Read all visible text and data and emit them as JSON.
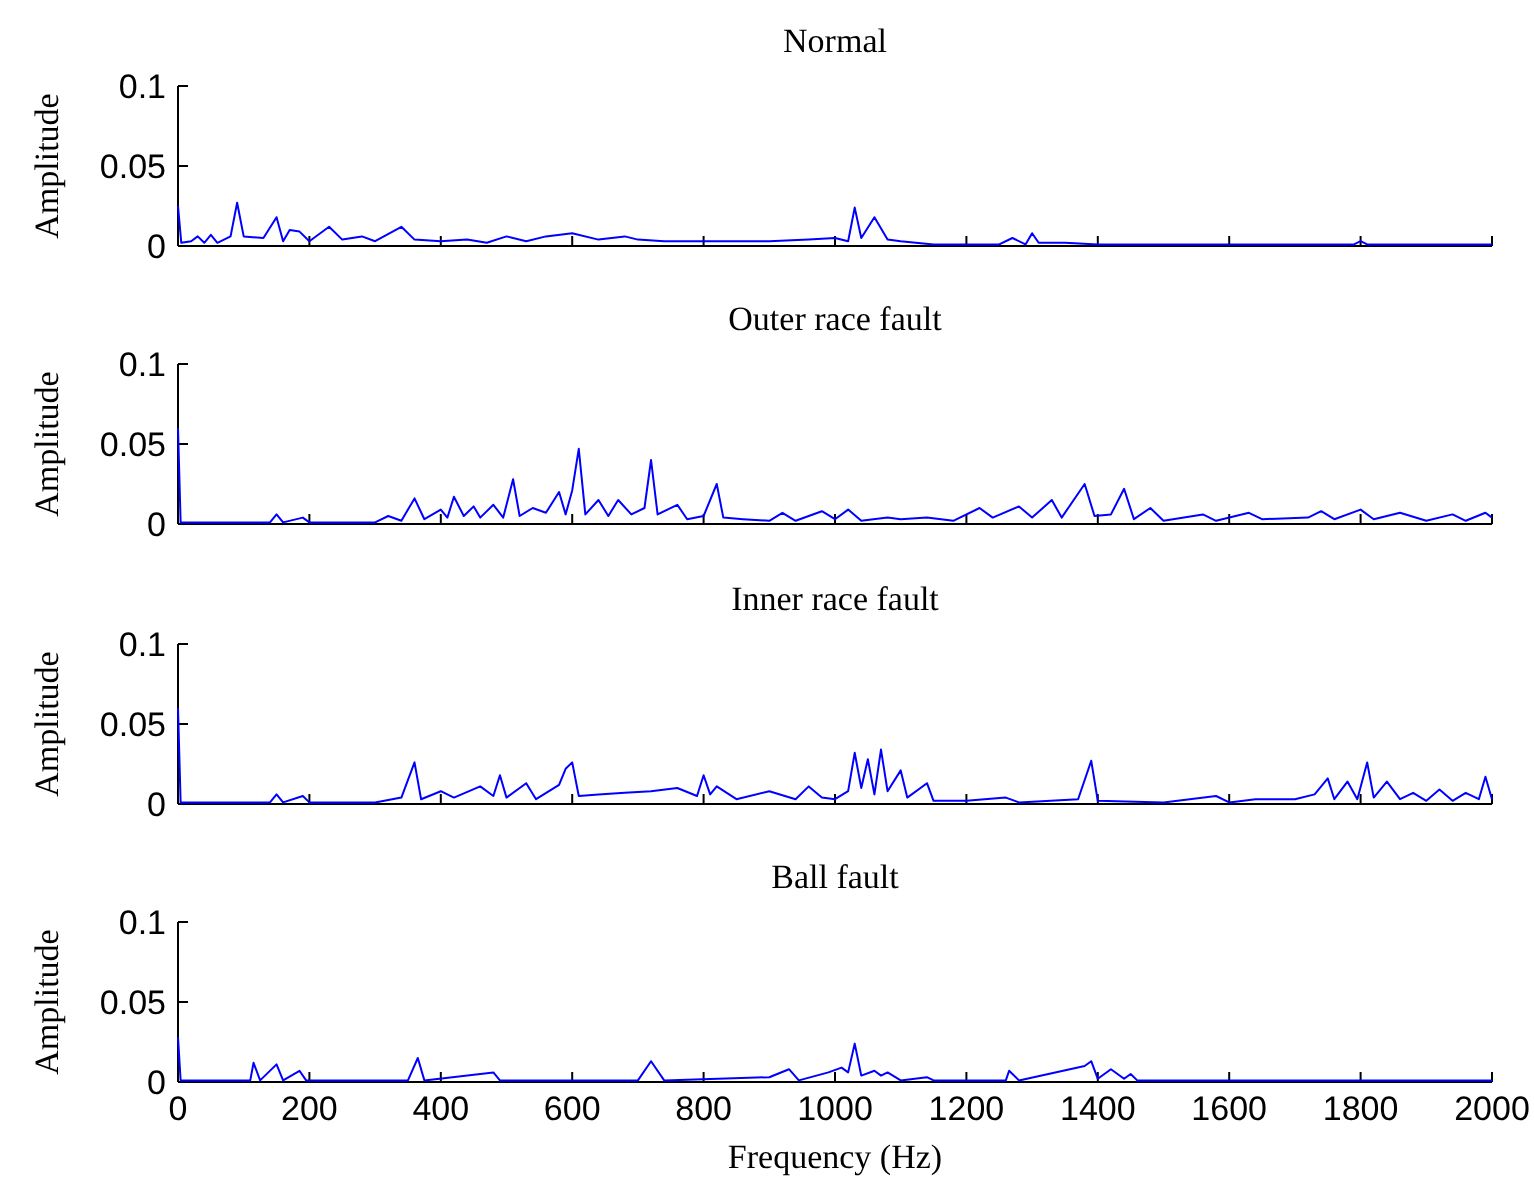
{
  "chart_data": [
    {
      "type": "line",
      "title": "Normal",
      "ylabel": "Amplitude",
      "xlim": [
        0,
        2000
      ],
      "xticks": [
        0,
        200,
        400,
        600,
        800,
        1000,
        1200,
        1400,
        1600,
        1800,
        2000
      ],
      "ylim": [
        0,
        0.1
      ],
      "yticks": [
        0,
        0.05,
        0.1
      ],
      "tick_labels": "y",
      "series": [
        {
          "color": "#0000ff",
          "x": [
            0,
            5,
            20,
            30,
            40,
            50,
            60,
            80,
            90,
            100,
            130,
            150,
            160,
            170,
            185,
            200,
            230,
            250,
            280,
            300,
            340,
            360,
            400,
            440,
            470,
            500,
            530,
            560,
            600,
            640,
            680,
            700,
            740,
            800,
            850,
            900,
            960,
            1000,
            1020,
            1030,
            1040,
            1060,
            1080,
            1100,
            1150,
            1250,
            1270,
            1290,
            1300,
            1310,
            1350,
            1400,
            1600,
            1790,
            1800,
            1810,
            2000
          ],
          "values": [
            0.025,
            0.002,
            0.003,
            0.006,
            0.002,
            0.007,
            0.002,
            0.006,
            0.027,
            0.006,
            0.005,
            0.018,
            0.003,
            0.01,
            0.009,
            0.003,
            0.012,
            0.004,
            0.006,
            0.003,
            0.012,
            0.004,
            0.003,
            0.004,
            0.002,
            0.006,
            0.003,
            0.006,
            0.008,
            0.004,
            0.006,
            0.004,
            0.003,
            0.003,
            0.003,
            0.003,
            0.004,
            0.005,
            0.003,
            0.024,
            0.005,
            0.018,
            0.004,
            0.003,
            0.001,
            0.001,
            0.005,
            0.001,
            0.008,
            0.002,
            0.002,
            0.001,
            0.001,
            0.001,
            0.003,
            0.001,
            0.001
          ]
        }
      ]
    },
    {
      "type": "line",
      "title": "Outer race fault",
      "ylabel": "Amplitude",
      "xlim": [
        0,
        2000
      ],
      "xticks": [
        0,
        200,
        400,
        600,
        800,
        1000,
        1200,
        1400,
        1600,
        1800,
        2000
      ],
      "ylim": [
        0,
        0.1
      ],
      "yticks": [
        0,
        0.05,
        0.1
      ],
      "tick_labels": "y",
      "series": [
        {
          "color": "#0000ff",
          "x": [
            0,
            4,
            140,
            150,
            160,
            190,
            200,
            300,
            320,
            340,
            360,
            375,
            400,
            410,
            420,
            435,
            450,
            460,
            480,
            495,
            510,
            520,
            540,
            560,
            580,
            590,
            600,
            610,
            620,
            640,
            655,
            670,
            690,
            710,
            720,
            730,
            760,
            775,
            800,
            820,
            830,
            860,
            900,
            920,
            940,
            980,
            1000,
            1020,
            1040,
            1080,
            1100,
            1140,
            1180,
            1220,
            1240,
            1280,
            1300,
            1330,
            1345,
            1380,
            1395,
            1420,
            1440,
            1455,
            1480,
            1500,
            1560,
            1580,
            1630,
            1650,
            1720,
            1740,
            1760,
            1800,
            1820,
            1860,
            1900,
            1940,
            1960,
            1990,
            2000
          ],
          "values": [
            0.06,
            0.001,
            0.001,
            0.006,
            0.001,
            0.004,
            0.001,
            0.001,
            0.005,
            0.002,
            0.016,
            0.003,
            0.009,
            0.004,
            0.017,
            0.005,
            0.011,
            0.004,
            0.012,
            0.004,
            0.028,
            0.005,
            0.01,
            0.007,
            0.02,
            0.006,
            0.021,
            0.047,
            0.006,
            0.015,
            0.005,
            0.015,
            0.006,
            0.01,
            0.04,
            0.006,
            0.012,
            0.003,
            0.005,
            0.025,
            0.004,
            0.003,
            0.002,
            0.007,
            0.002,
            0.008,
            0.003,
            0.009,
            0.002,
            0.004,
            0.003,
            0.004,
            0.002,
            0.01,
            0.004,
            0.011,
            0.004,
            0.015,
            0.004,
            0.025,
            0.005,
            0.006,
            0.022,
            0.003,
            0.01,
            0.002,
            0.006,
            0.002,
            0.007,
            0.003,
            0.004,
            0.008,
            0.003,
            0.009,
            0.003,
            0.007,
            0.002,
            0.006,
            0.002,
            0.007,
            0.004
          ]
        }
      ]
    },
    {
      "type": "line",
      "title": "Inner race fault",
      "ylabel": "Amplitude",
      "xlim": [
        0,
        2000
      ],
      "xticks": [
        0,
        200,
        400,
        600,
        800,
        1000,
        1200,
        1400,
        1600,
        1800,
        2000
      ],
      "ylim": [
        0,
        0.1
      ],
      "yticks": [
        0,
        0.05,
        0.1
      ],
      "tick_labels": "y",
      "series": [
        {
          "color": "#0000ff",
          "x": [
            0,
            4,
            140,
            150,
            160,
            190,
            200,
            300,
            340,
            360,
            370,
            400,
            420,
            460,
            480,
            490,
            500,
            530,
            545,
            580,
            590,
            600,
            610,
            640,
            680,
            720,
            760,
            790,
            800,
            810,
            820,
            850,
            900,
            940,
            960,
            980,
            1000,
            1020,
            1030,
            1040,
            1050,
            1060,
            1070,
            1080,
            1100,
            1110,
            1140,
            1150,
            1200,
            1260,
            1280,
            1370,
            1390,
            1400,
            1500,
            1580,
            1600,
            1640,
            1700,
            1730,
            1750,
            1760,
            1780,
            1795,
            1810,
            1820,
            1840,
            1860,
            1880,
            1900,
            1920,
            1940,
            1960,
            1980,
            1990,
            2000
          ],
          "values": [
            0.06,
            0.001,
            0.001,
            0.006,
            0.001,
            0.005,
            0.001,
            0.001,
            0.004,
            0.026,
            0.003,
            0.008,
            0.004,
            0.011,
            0.005,
            0.018,
            0.004,
            0.013,
            0.003,
            0.012,
            0.022,
            0.026,
            0.005,
            0.006,
            0.007,
            0.008,
            0.01,
            0.005,
            0.018,
            0.006,
            0.011,
            0.003,
            0.008,
            0.003,
            0.011,
            0.004,
            0.003,
            0.008,
            0.032,
            0.01,
            0.028,
            0.006,
            0.034,
            0.008,
            0.021,
            0.004,
            0.013,
            0.002,
            0.002,
            0.004,
            0.001,
            0.003,
            0.027,
            0.002,
            0.001,
            0.005,
            0.001,
            0.003,
            0.003,
            0.006,
            0.016,
            0.003,
            0.014,
            0.003,
            0.026,
            0.004,
            0.014,
            0.003,
            0.007,
            0.002,
            0.009,
            0.002,
            0.007,
            0.003,
            0.017,
            0.003
          ]
        }
      ]
    },
    {
      "type": "line",
      "title": "Ball fault",
      "xlabel": "Frequency (Hz)",
      "ylabel": "Amplitude",
      "xlim": [
        0,
        2000
      ],
      "xticks": [
        0,
        200,
        400,
        600,
        800,
        1000,
        1200,
        1400,
        1600,
        1800,
        2000
      ],
      "ylim": [
        0,
        0.1
      ],
      "yticks": [
        0,
        0.05,
        0.1
      ],
      "series": [
        {
          "color": "#0000ff",
          "x": [
            0,
            4,
            110,
            115,
            125,
            150,
            160,
            185,
            195,
            350,
            365,
            375,
            480,
            490,
            700,
            720,
            740,
            900,
            930,
            945,
            990,
            1010,
            1020,
            1030,
            1040,
            1060,
            1070,
            1080,
            1100,
            1140,
            1150,
            1260,
            1265,
            1280,
            1380,
            1390,
            1400,
            1420,
            1440,
            1450,
            1460,
            2000
          ],
          "values": [
            0.028,
            0.001,
            0.001,
            0.012,
            0.001,
            0.011,
            0.001,
            0.007,
            0.001,
            0.001,
            0.015,
            0.001,
            0.006,
            0.001,
            0.001,
            0.013,
            0.001,
            0.003,
            0.008,
            0.001,
            0.006,
            0.009,
            0.006,
            0.024,
            0.004,
            0.007,
            0.004,
            0.006,
            0.001,
            0.003,
            0.001,
            0.001,
            0.007,
            0.001,
            0.01,
            0.013,
            0.002,
            0.008,
            0.002,
            0.005,
            0.001,
            0.001
          ]
        }
      ]
    }
  ]
}
